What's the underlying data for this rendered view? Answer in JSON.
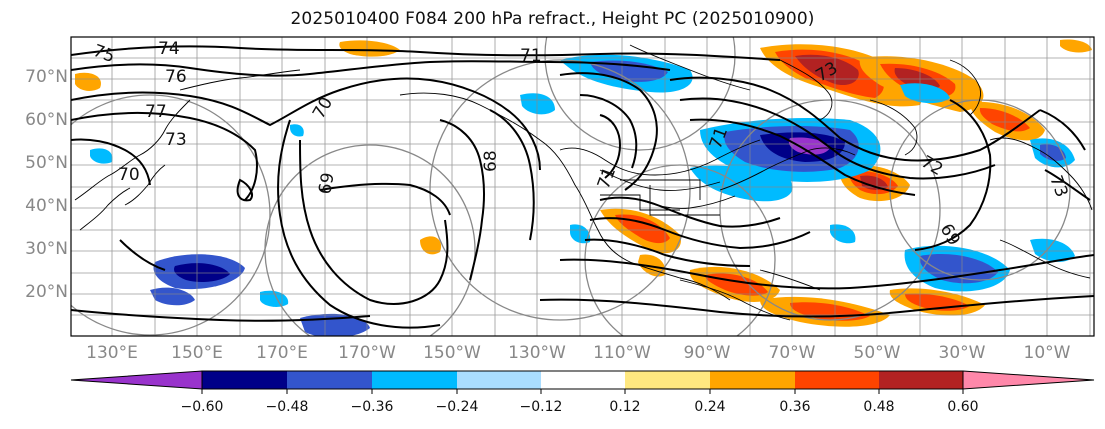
{
  "title": "2025010400 F084 200 hPa refract., Height PC (2025010900)",
  "map": {
    "latitude_labels": [
      "70°N",
      "60°N",
      "50°N",
      "40°N",
      "30°N",
      "20°N"
    ],
    "longitude_labels": [
      "130°E",
      "150°E",
      "170°E",
      "170°W",
      "150°W",
      "130°W",
      "110°W",
      "90°W",
      "70°W",
      "50°W",
      "30°W",
      "10°W"
    ],
    "contour_labels": [
      "75",
      "74",
      "76",
      "77",
      "73",
      "70",
      "70",
      "69",
      "68",
      "71",
      "71",
      "73",
      "72",
      "73",
      "71",
      "69"
    ]
  },
  "colorbar": {
    "tick_labels": [
      "−0.60",
      "−0.48",
      "−0.36",
      "−0.24",
      "−0.12",
      "0.12",
      "0.24",
      "0.36",
      "0.48",
      "0.60"
    ],
    "colors": [
      "#9933cc",
      "#000088",
      "#3355cc",
      "#00bbff",
      "#aaddff",
      "#ffffff",
      "#ffe880",
      "#ffa500",
      "#ff4400",
      "#b22222",
      "#ff88aa"
    ]
  },
  "colors": {
    "axis": "#000000",
    "grid": "#888888",
    "contour": "#000000"
  }
}
